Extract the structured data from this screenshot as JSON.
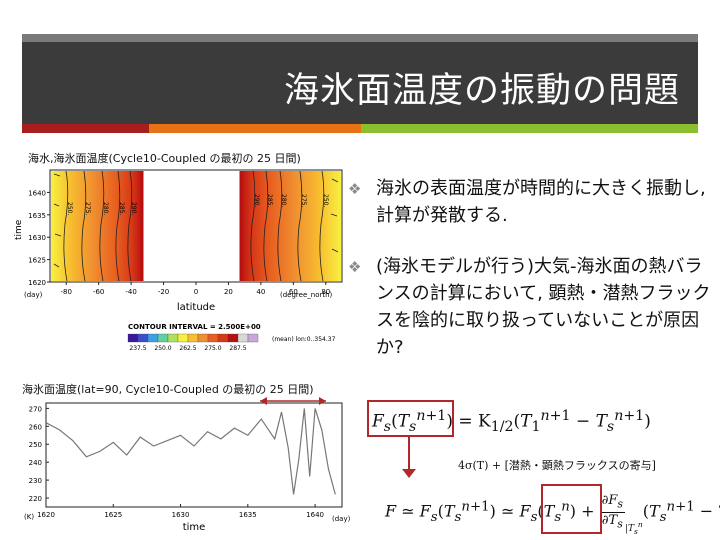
{
  "slide": {
    "title": "海氷面温度の振動の問題",
    "colors": {
      "title_bar": "#3b3b3b",
      "accent_red": "#a81e1e",
      "accent_orange": "#e87316",
      "accent_green": "#8cbf2e",
      "box_red": "#b0282a"
    }
  },
  "figure1": {
    "caption": "海水,海氷面温度(Cycle10-Coupled の最初の 25 日間)",
    "chart_data": {
      "type": "heatmap",
      "xlabel": "latitude",
      "ylabel": "time",
      "x_unit_left": "(day)",
      "x_unit_right": "(degree_north)",
      "xticks": [
        "-80",
        "-60",
        "-40",
        "-20",
        "0",
        "20",
        "40",
        "60",
        "80"
      ],
      "yticks": [
        "1620",
        "1625",
        "1630",
        "1635",
        "1640"
      ],
      "xlim": [
        -90,
        90
      ],
      "ylim": [
        1620,
        1645
      ],
      "contour_labels_left": [
        "250.",
        "275.",
        "280.",
        "285.",
        "290."
      ],
      "contour_labels_right": [
        "290.",
        "285.",
        "280.",
        "275.",
        "250."
      ],
      "contour_interval": "CONTOUR INTERVAL = 2.500E+00",
      "mean_note": "(mean) lon:0..354.37",
      "colorbar_ticks": [
        "237.5",
        "250.0",
        "262.5",
        "275.0",
        "287.5"
      ],
      "colorbar_colors": [
        "#3a1a9a",
        "#3850d0",
        "#3aa0e8",
        "#60d0a0",
        "#b0e060",
        "#f8f040",
        "#f8c030",
        "#f09030",
        "#e86020",
        "#d83818",
        "#b81010",
        "#d8d8d8",
        "#c8a8d8"
      ]
    }
  },
  "figure2": {
    "caption": "海氷面温度(lat=90, Cycle10-Coupled の最初の 25 日間)",
    "chart_data": {
      "type": "line",
      "xlabel": "time",
      "x_unit_left": "(K)",
      "x_unit_right": "(day)",
      "xticks": [
        "1620",
        "1625",
        "1630",
        "1635",
        "1640"
      ],
      "yticks": [
        "220",
        "230",
        "240",
        "250",
        "260",
        "270"
      ],
      "xlim": [
        1620,
        1642
      ],
      "ylim": [
        215,
        273
      ],
      "x": [
        1620,
        1621,
        1622,
        1623,
        1624,
        1625,
        1626,
        1627,
        1628,
        1629,
        1630,
        1631,
        1632,
        1633,
        1634,
        1635,
        1636,
        1637,
        1637.5,
        1638,
        1638.4,
        1638.8,
        1639.2,
        1639.6,
        1640,
        1640.5,
        1641,
        1641.5
      ],
      "y": [
        262,
        258,
        252,
        243,
        246,
        251,
        244,
        254,
        249,
        252,
        255,
        249,
        257,
        253,
        259,
        255,
        264,
        253,
        268,
        248,
        222,
        242,
        270,
        232,
        270,
        258,
        236,
        222
      ]
    }
  },
  "bullets": [
    {
      "icon": "diamond-bullet-icon",
      "text": "海氷の表面温度が時間的に大きく振動し, 計算が発散する."
    },
    {
      "icon": "diamond-bullet-icon",
      "text": "(海氷モデルが行う)大気-海氷面の熱バランスの計算において, 顕熱・潜熱フラックスを陰的に取り扱っていないことが原因か?"
    }
  ],
  "equations": {
    "eq1_lhs": "F",
    "eq1_rhs": "= K",
    "eq2": "4σ(T) + [潜熱・顕熱フラックスの寄与]",
    "eq3": "F ≃ F"
  }
}
